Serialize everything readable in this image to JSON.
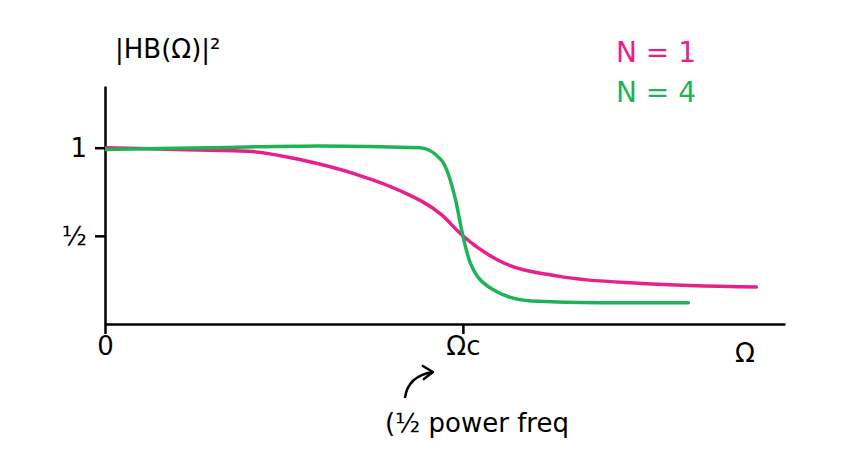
{
  "chart_data": {
    "type": "line",
    "ylabel": "|HB(Ω)|²",
    "xlabel": "Ω",
    "annotations": [
      "(½ power freq"
    ],
    "xlim": [
      0,
      1.9
    ],
    "ylim": [
      0,
      1.35
    ],
    "xticks": [
      0,
      {
        "value": 1,
        "label": "Ωc"
      }
    ],
    "yticks": [
      {
        "value": 0.5,
        "label": "½"
      },
      1
    ],
    "grid": false,
    "legend": "top-right",
    "series": [
      {
        "name": "N = 1",
        "color": "#e8208c",
        "x": [
          0,
          0.2,
          0.4,
          0.55,
          0.7,
          0.82,
          0.94,
          1.0,
          1.1,
          1.27,
          1.5,
          1.82
        ],
        "values": [
          1.0,
          0.99,
          0.98,
          0.93,
          0.85,
          0.76,
          0.62,
          0.5,
          0.36,
          0.27,
          0.23,
          0.21
        ]
      },
      {
        "name": "N = 4",
        "color": "#1fb356",
        "x": [
          0,
          0.3,
          0.6,
          0.88,
          0.94,
          0.98,
          1.0,
          1.02,
          1.08,
          1.19,
          1.38,
          1.63
        ],
        "values": [
          0.99,
          1.0,
          1.01,
          1.0,
          0.93,
          0.7,
          0.5,
          0.35,
          0.2,
          0.13,
          0.12,
          0.12
        ]
      }
    ]
  }
}
